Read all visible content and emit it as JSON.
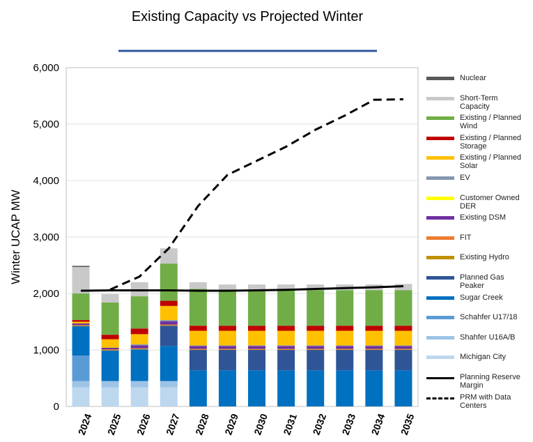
{
  "chart_data": {
    "type": "bar",
    "stacked": true,
    "title": "Existing Capacity vs Projected Winter",
    "y_label": "Winter UCAP MW",
    "categories": [
      "2024",
      "2025",
      "2026",
      "2027",
      "2028",
      "2029",
      "2030",
      "2031",
      "2032",
      "2033",
      "2034",
      "2035"
    ],
    "ylim": [
      0,
      6000
    ],
    "yticks": [
      0,
      {
        "value": 1000,
        "label": "1,000"
      },
      {
        "value": 2000,
        "label": "2,000"
      },
      {
        "value": 3000,
        "label": "3,000"
      },
      {
        "value": 4000,
        "label": "4,000"
      },
      {
        "value": 5000,
        "label": "5,000"
      },
      {
        "value": 6000,
        "label": "6,000"
      }
    ],
    "grid": true,
    "series": [
      {
        "name": "Michigan City",
        "color": "#bdd7ee",
        "values": [
          340,
          340,
          340,
          340,
          0,
          0,
          0,
          0,
          0,
          0,
          0,
          0
        ]
      },
      {
        "name": "Shahfer U16A/B",
        "color": "#9dc3e6",
        "values": [
          110,
          110,
          110,
          110,
          0,
          0,
          0,
          0,
          0,
          0,
          0,
          0
        ]
      },
      {
        "name": "Schahfer U17/18",
        "color": "#5b9bd5",
        "values": [
          450,
          0,
          0,
          0,
          0,
          0,
          0,
          0,
          0,
          0,
          0,
          0
        ]
      },
      {
        "name": "Sugar Creek",
        "color": "#0070c0",
        "values": [
          520,
          540,
          560,
          620,
          640,
          640,
          640,
          640,
          640,
          640,
          640,
          640
        ]
      },
      {
        "name": "Planned Gas Peaker",
        "color": "#2f5597",
        "values": [
          0,
          0,
          0,
          360,
          360,
          360,
          360,
          360,
          360,
          360,
          360,
          360
        ]
      },
      {
        "name": "Existing Hydro",
        "color": "#bf9000",
        "values": [
          10,
          10,
          10,
          10,
          10,
          10,
          10,
          10,
          10,
          10,
          10,
          10
        ]
      },
      {
        "name": "FIT",
        "color": "#ed7d31",
        "values": [
          10,
          10,
          10,
          10,
          10,
          10,
          10,
          10,
          10,
          10,
          10,
          10
        ]
      },
      {
        "name": "Existing DSM",
        "color": "#7030a0",
        "values": [
          30,
          30,
          50,
          60,
          50,
          50,
          50,
          50,
          50,
          50,
          50,
          50
        ]
      },
      {
        "name": "Customer Owned DER",
        "color": "#ffff00",
        "values": [
          0,
          0,
          0,
          0,
          0,
          0,
          0,
          0,
          0,
          0,
          0,
          0
        ]
      },
      {
        "name": "EV",
        "color": "#8497b0",
        "values": [
          0,
          0,
          20,
          20,
          10,
          10,
          10,
          10,
          10,
          10,
          10,
          10
        ]
      },
      {
        "name": "Existing / Planned Solar",
        "color": "#ffc000",
        "values": [
          30,
          150,
          180,
          250,
          260,
          260,
          260,
          260,
          260,
          260,
          260,
          260
        ]
      },
      {
        "name": "Existing / Planned Storage",
        "color": "#c00000",
        "values": [
          30,
          80,
          100,
          90,
          90,
          90,
          90,
          90,
          90,
          90,
          90,
          90
        ]
      },
      {
        "name": "Existing / Planned Wind",
        "color": "#70ad47",
        "values": [
          470,
          570,
          570,
          660,
          650,
          630,
          630,
          630,
          630,
          630,
          630,
          630
        ]
      },
      {
        "name": "Short-Term Capacity",
        "color": "#c9c9c9",
        "values": [
          470,
          150,
          250,
          270,
          120,
          100,
          100,
          100,
          100,
          100,
          100,
          110
        ]
      },
      {
        "name": "Nuclear",
        "color": "#595959",
        "values": [
          20,
          0,
          0,
          0,
          0,
          0,
          0,
          0,
          0,
          0,
          0,
          0
        ]
      }
    ],
    "lines": [
      {
        "name": "Planning Reserve Margin",
        "color": "#000000",
        "dashed": false,
        "values": [
          2050,
          2055,
          2055,
          2055,
          2050,
          2050,
          2055,
          2065,
          2080,
          2095,
          2110,
          2130
        ]
      },
      {
        "name": "PRM with Data Centers",
        "color": "#000000",
        "dashed": true,
        "values": [
          null,
          2070,
          2300,
          2800,
          3550,
          4100,
          4350,
          4600,
          4900,
          5150,
          5430,
          5440
        ]
      }
    ]
  }
}
